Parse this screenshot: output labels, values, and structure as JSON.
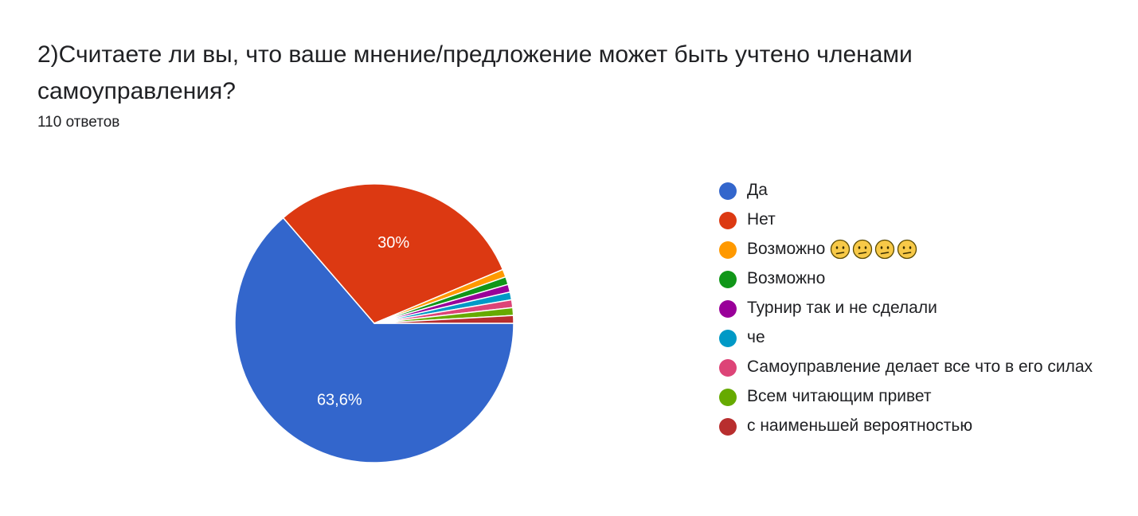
{
  "header": {
    "title": "2)Считаете ли вы, что ваше мнение/предложение может быть учтено членами самоуправления?",
    "responses": "110 ответов"
  },
  "emoji_icon": "neutral-face-emoji",
  "chart_data": {
    "type": "pie",
    "title": "2)Считаете ли вы, что ваше мнение/предложение может быть учтено членами самоуправления?",
    "total_responses": 110,
    "legend_position": "right",
    "slices": [
      {
        "label": "Да",
        "value": 63.6,
        "percent_label": "63,6%",
        "color": "#3366cc"
      },
      {
        "label": "Нет",
        "value": 30.0,
        "percent_label": "30%",
        "color": "#dc3912"
      },
      {
        "label": "Возможно",
        "emoji_count": 4,
        "value": 0.9,
        "percent_label": "",
        "color": "#ff9900"
      },
      {
        "label": "Возможно",
        "value": 0.9,
        "percent_label": "",
        "color": "#109618"
      },
      {
        "label": "Турнир так и не сделали",
        "value": 0.9,
        "percent_label": "",
        "color": "#990099"
      },
      {
        "label": "че",
        "value": 0.9,
        "percent_label": "",
        "color": "#0099c6"
      },
      {
        "label": "Самоуправление делает все что в его силах",
        "value": 0.9,
        "percent_label": "",
        "color": "#dd4477"
      },
      {
        "label": "Всем читающим привет",
        "value": 0.9,
        "percent_label": "",
        "color": "#66aa00"
      },
      {
        "label": "с наименьшей вероятностью",
        "value": 0.9,
        "percent_label": "",
        "color": "#b82e2e"
      }
    ]
  }
}
